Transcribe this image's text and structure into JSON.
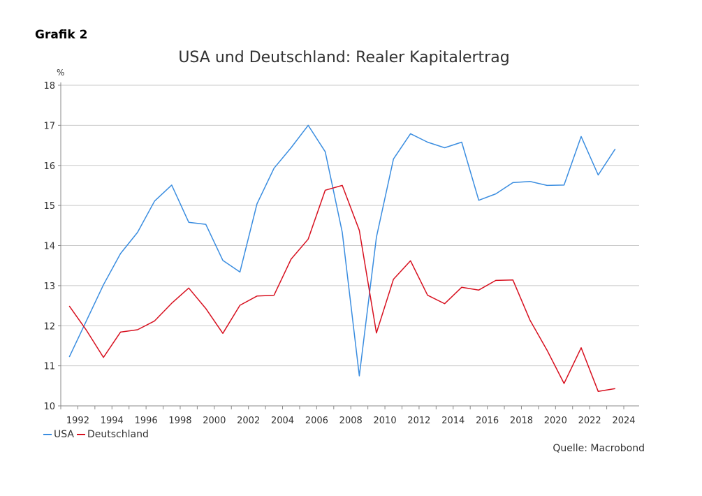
{
  "header": {
    "label": "Grafik 2",
    "source": "Quelle: Macrobond"
  },
  "colors": {
    "usa": "#3a8de0",
    "deutschland": "#d7101f",
    "grid": "#c8c8c8",
    "axis": "#888888"
  },
  "chart_data": {
    "type": "line",
    "title": "USA und Deutschland: Realer Kapitalertrag",
    "ylabel": "%",
    "xlim": [
      1991,
      2024.9
    ],
    "ylim": [
      10,
      18
    ],
    "yticks": [
      10,
      11,
      12,
      13,
      14,
      15,
      16,
      17,
      18
    ],
    "xticks": [
      1992,
      1994,
      1996,
      1998,
      2000,
      2002,
      2004,
      2006,
      2008,
      2010,
      2012,
      2014,
      2016,
      2018,
      2020,
      2022,
      2024
    ],
    "grid": true,
    "legend_position": "bottom-left",
    "x": [
      1991.5,
      1992.5,
      1993.5,
      1994.5,
      1995.5,
      1996.5,
      1997.5,
      1998.5,
      1999.5,
      2000.5,
      2001.5,
      2002.5,
      2003.5,
      2004.5,
      2005.5,
      2006.5,
      2007.5,
      2008.5,
      2009.5,
      2010.5,
      2011.5,
      2012.5,
      2013.5,
      2014.5,
      2015.5,
      2016.5,
      2017.5,
      2018.5,
      2019.5,
      2020.5,
      2021.5,
      2022.5,
      2023.5
    ],
    "series": [
      {
        "name": "USA",
        "values": [
          11.22,
          12.12,
          13.02,
          13.8,
          14.33,
          15.11,
          15.51,
          14.58,
          14.53,
          13.63,
          13.34,
          15.04,
          15.93,
          16.44,
          17.0,
          16.34,
          14.33,
          10.75,
          14.21,
          16.16,
          16.79,
          16.58,
          16.44,
          16.58,
          15.13,
          15.29,
          15.57,
          15.6,
          15.5,
          15.51,
          16.72,
          15.76,
          16.41
        ]
      },
      {
        "name": "Deutschland",
        "values": [
          12.49,
          11.89,
          11.21,
          11.84,
          11.9,
          12.12,
          12.56,
          12.94,
          12.43,
          11.81,
          12.51,
          12.74,
          12.76,
          13.66,
          14.16,
          15.38,
          15.5,
          14.38,
          11.82,
          13.16,
          13.62,
          12.76,
          12.55,
          12.96,
          12.89,
          13.13,
          13.14,
          12.14,
          11.39,
          10.56,
          11.45,
          10.36,
          10.43
        ]
      }
    ]
  }
}
